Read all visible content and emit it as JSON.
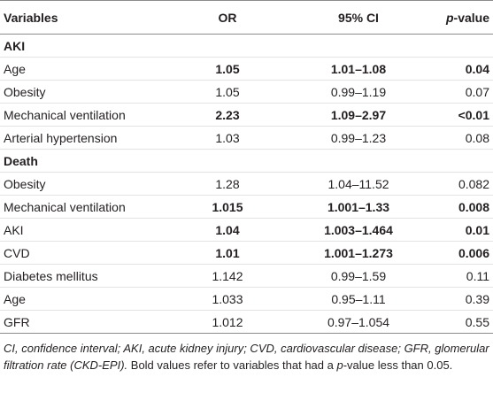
{
  "table": {
    "header": [
      [
        {
          "text": "Variables",
          "italic": false
        }
      ],
      [
        {
          "text": "OR",
          "italic": false
        }
      ],
      [
        {
          "text": "95% CI",
          "italic": false
        }
      ],
      [
        {
          "text": "p",
          "italic": true
        },
        {
          "text": "-value",
          "italic": false
        }
      ]
    ],
    "sections": [
      {
        "title": "AKI",
        "rows": [
          {
            "cells": [
              "Age",
              "1.05",
              "1.01–1.08",
              "0.04"
            ],
            "bold": true
          },
          {
            "cells": [
              "Obesity",
              "1.05",
              "0.99–1.19",
              "0.07"
            ],
            "bold": false
          },
          {
            "cells": [
              "Mechanical ventilation",
              "2.23",
              "1.09–2.97",
              "<0.01"
            ],
            "bold": true
          },
          {
            "cells": [
              "Arterial hypertension",
              "1.03",
              "0.99–1.23",
              "0.08"
            ],
            "bold": false
          }
        ]
      },
      {
        "title": "Death",
        "rows": [
          {
            "cells": [
              "Obesity",
              "1.28",
              "1.04–11.52",
              "0.082"
            ],
            "bold": false
          },
          {
            "cells": [
              "Mechanical ventilation",
              "1.015",
              "1.001–1.33",
              "0.008"
            ],
            "bold": true
          },
          {
            "cells": [
              "AKI",
              "1.04",
              "1.003–1.464",
              "0.01"
            ],
            "bold": true
          },
          {
            "cells": [
              "CVD",
              "1.01",
              "1.001–1.273",
              "0.006"
            ],
            "bold": true
          },
          {
            "cells": [
              "Diabetes mellitus",
              "1.142",
              "0.99–1.59",
              "0.11"
            ],
            "bold": false
          },
          {
            "cells": [
              "Age",
              "1.033",
              "0.95–1.11",
              "0.39"
            ],
            "bold": false
          },
          {
            "cells": [
              "GFR",
              "1.012",
              "0.97–1.054",
              "0.55"
            ],
            "bold": false
          }
        ]
      }
    ]
  },
  "footnote": [
    {
      "text": "CI, confidence interval; AKI, acute kidney injury; CVD, cardiovascular disease; GFR, glomerular filtration rate (CKD-EPI).",
      "italic": true
    },
    {
      "text": " Bold values refer to variables that had a ",
      "italic": false
    },
    {
      "text": "p",
      "italic": true
    },
    {
      "text": "-value less than 0.05.",
      "italic": false
    }
  ]
}
